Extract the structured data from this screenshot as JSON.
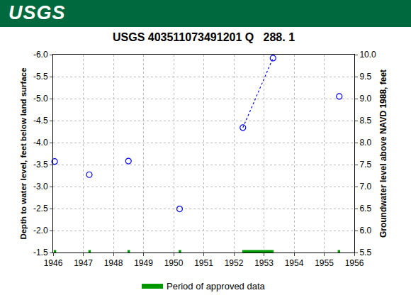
{
  "header": {
    "text": "USGS"
  },
  "chart_data": {
    "type": "scatter",
    "title": "USGS 403511073491201 Q   288. 1",
    "ylabel": "Depth to water level, feet below land surface",
    "y2label": "Groundwater level above NAVD 1988, feet",
    "series": [
      {
        "type": "scatter",
        "marker": "circle-open",
        "color": "#0000ff",
        "x": [
          1946.05,
          1947.2,
          1948.5,
          1950.2,
          1952.3,
          1953.3,
          1955.5
        ],
        "values": [
          -3.57,
          -3.27,
          -3.58,
          -2.49,
          -4.34,
          -5.92,
          -5.05
        ]
      },
      {
        "type": "line",
        "line_style": "dotted",
        "color": "#0000ff",
        "x": [
          1952.3,
          1953.3
        ],
        "values": [
          -4.34,
          -5.92
        ]
      },
      {
        "name": "Period of approved data",
        "type": "line",
        "line_style": "solid",
        "color": "#009900",
        "x": [
          1946.02,
          1946.1,
          1946.5,
          1947.17,
          1947.25,
          1947.8,
          1948.47,
          1948.55,
          1949.2,
          1950.17,
          1950.25,
          1951,
          1952.28,
          1953.32,
          1954,
          1955.45,
          1955.53
        ],
        "values": [
          -1.5,
          -1.5,
          null,
          -1.5,
          -1.5,
          null,
          -1.5,
          -1.5,
          null,
          -1.5,
          -1.5,
          null,
          -1.5,
          -1.5,
          null,
          -1.5,
          -1.5
        ]
      }
    ],
    "xlim": [
      1946,
      1956
    ],
    "xticks": [
      1946,
      1947,
      1948,
      1949,
      1950,
      1951,
      1952,
      1953,
      1954,
      1955,
      1956
    ],
    "ylim": [
      -1.5,
      -6
    ],
    "yticks": [
      {
        "value": -6,
        "label": "-6.0"
      },
      -5.5,
      {
        "value": -5,
        "label": "-5.0"
      },
      -4.5,
      {
        "value": -4,
        "label": "-4.0"
      },
      -3.5,
      {
        "value": -3,
        "label": "-3.0"
      },
      -2.5,
      {
        "value": -2,
        "label": "-2.0"
      },
      -1.5
    ],
    "y2lim": [
      5.5,
      10
    ],
    "y2ticks": [
      5.5,
      {
        "value": 6,
        "label": "6.0"
      },
      6.5,
      {
        "value": 7,
        "label": "7.0"
      },
      7.5,
      {
        "value": 8,
        "label": "8.0"
      },
      8.5,
      {
        "value": 9,
        "label": "9.0"
      },
      9.5,
      {
        "value": 10,
        "label": "10.0"
      }
    ],
    "grid": true,
    "legend": "bottom"
  }
}
